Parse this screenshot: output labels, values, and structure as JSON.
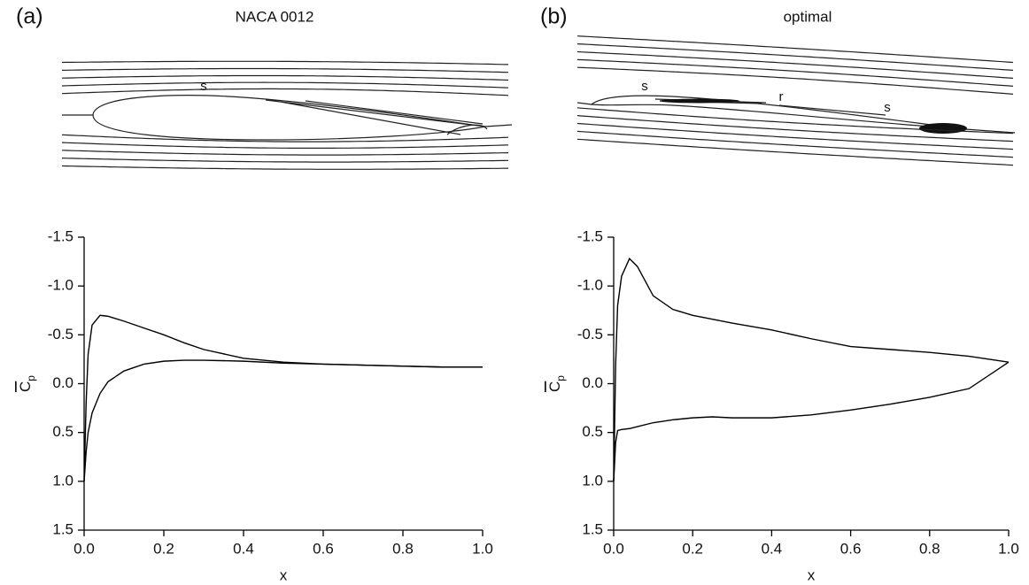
{
  "chart_data": [
    {
      "type": "line",
      "panel_label": "(a)",
      "title": "NACA 0012",
      "annotations": [
        "s"
      ],
      "x_label": "x",
      "y_label": {
        "main": "C",
        "sub": "p"
      },
      "xlim": [
        0,
        1
      ],
      "xticks": [
        {
          "value": 0,
          "label": "0.0"
        },
        0.2,
        0.4,
        0.6,
        0.8,
        {
          "value": 1,
          "label": "1.0"
        }
      ],
      "ylim": [
        -1.5,
        1.5
      ],
      "y_inverted": true,
      "yticks": [
        -1.5,
        {
          "value": -1,
          "label": "-1.0"
        },
        -0.5,
        {
          "value": 0,
          "label": "0.0"
        },
        0.5,
        {
          "value": 1,
          "label": "1.0"
        },
        1.5
      ],
      "x": [
        0,
        0.005,
        0.01,
        0.02,
        0.04,
        0.06,
        0.1,
        0.15,
        0.2,
        0.25,
        0.3,
        0.4,
        0.5,
        0.6,
        0.7,
        0.8,
        0.9,
        1.0
      ],
      "series": [
        {
          "color": "#000000",
          "values": [
            1.0,
            0.2,
            -0.3,
            -0.6,
            -0.7,
            -0.69,
            -0.64,
            -0.57,
            -0.5,
            -0.42,
            -0.35,
            -0.26,
            -0.22,
            -0.2,
            -0.19,
            -0.18,
            -0.17,
            -0.17
          ]
        },
        {
          "color": "#000000",
          "values": [
            1.0,
            0.7,
            0.5,
            0.3,
            0.1,
            -0.02,
            -0.13,
            -0.2,
            -0.23,
            -0.24,
            -0.24,
            -0.23,
            -0.21,
            -0.2,
            -0.19,
            -0.18,
            -0.17,
            -0.17
          ]
        }
      ]
    },
    {
      "type": "line",
      "panel_label": "(b)",
      "title": "optimal",
      "annotations": [
        "s",
        "r",
        "s"
      ],
      "x_label": "x",
      "y_label": {
        "main": "C",
        "sub": "p"
      },
      "xlim": [
        0,
        1
      ],
      "xticks": [
        {
          "value": 0,
          "label": "0.0"
        },
        0.2,
        0.4,
        0.6,
        0.8,
        {
          "value": 1,
          "label": "1.0"
        }
      ],
      "ylim": [
        -1.5,
        1.5
      ],
      "y_inverted": true,
      "yticks": [
        -1.5,
        {
          "value": -1,
          "label": "-1.0"
        },
        -0.5,
        {
          "value": 0,
          "label": "0.0"
        },
        0.5,
        {
          "value": 1,
          "label": "1.0"
        },
        1.5
      ],
      "x": [
        0,
        0.005,
        0.01,
        0.02,
        0.04,
        0.06,
        0.1,
        0.15,
        0.2,
        0.25,
        0.3,
        0.4,
        0.5,
        0.6,
        0.7,
        0.8,
        0.9,
        1.0
      ],
      "series": [
        {
          "color": "#000000",
          "values": [
            1.0,
            -0.2,
            -0.8,
            -1.1,
            -1.28,
            -1.2,
            -0.9,
            -0.76,
            -0.7,
            -0.66,
            -0.62,
            -0.55,
            -0.46,
            -0.38,
            -0.35,
            -0.32,
            -0.28,
            -0.22
          ]
        },
        {
          "color": "#000000",
          "values": [
            1.0,
            0.6,
            0.48,
            0.47,
            0.46,
            0.44,
            0.4,
            0.37,
            0.35,
            0.34,
            0.35,
            0.35,
            0.32,
            0.27,
            0.21,
            0.14,
            0.05,
            -0.22
          ]
        }
      ]
    }
  ]
}
